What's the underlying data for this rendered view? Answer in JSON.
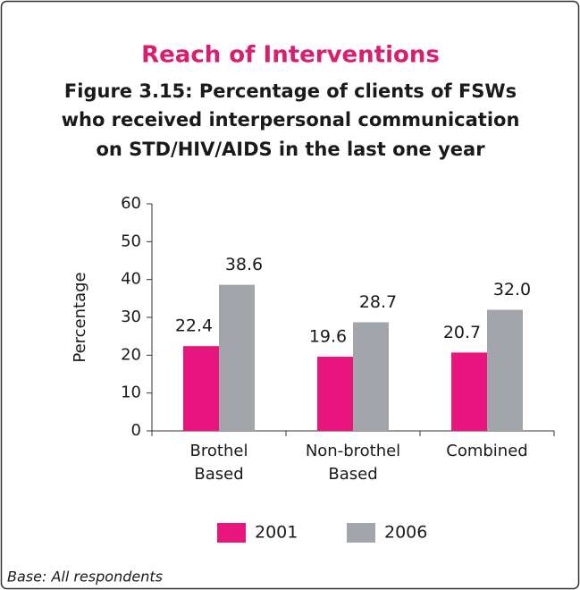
{
  "chart_data": {
    "type": "bar",
    "title": "Reach of Interventions",
    "subtitle": [
      "Figure 3.15: Percentage of clients of FSWs",
      "who received interpersonal communication",
      "on STD/HIV/AIDS in the last one year"
    ],
    "y_label": "Percentage",
    "categories": [
      "Brothel Based",
      "Non-brothel Based",
      "Combined"
    ],
    "series": [
      {
        "name": "2001",
        "color": "#e8157f",
        "values": [
          22.4,
          19.6,
          20.7
        ],
        "value_labels": [
          "22.4",
          "19.6",
          "20.7"
        ]
      },
      {
        "name": "2006",
        "color": "#a2a5a9",
        "values": [
          38.6,
          28.7,
          32.0
        ],
        "value_labels": [
          "38.6",
          "28.7",
          "32.0"
        ]
      }
    ],
    "ylim": [
      0,
      60
    ],
    "yticks": [
      0,
      10,
      20,
      30,
      40,
      50,
      60
    ],
    "footnote": "Base: All respondents"
  }
}
